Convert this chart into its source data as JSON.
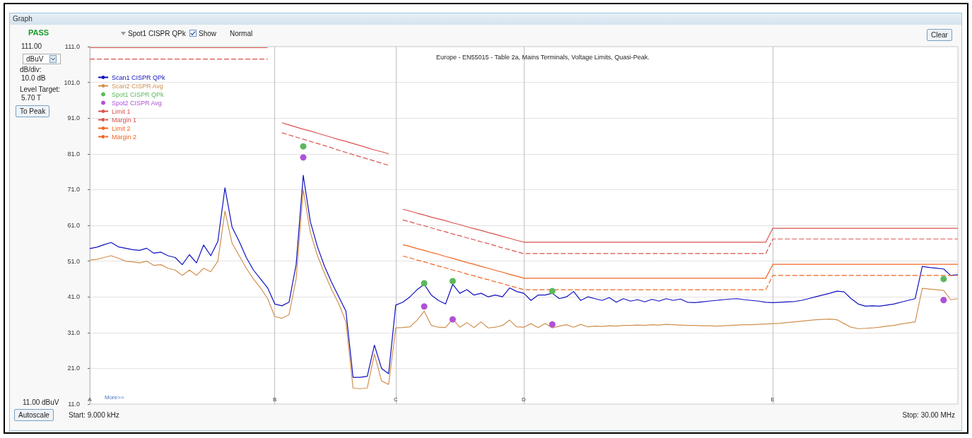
{
  "chart_data": {
    "type": "line",
    "title": "Europe - EN55015 - Table 2a, Mains Terminals, Voltage Limits, Quasi-Peak.",
    "categories": [
      "A",
      null,
      null,
      null,
      null,
      null,
      null,
      null,
      null,
      null,
      null,
      null,
      null,
      null,
      null,
      null,
      null,
      null,
      null,
      null,
      null,
      null,
      null,
      null,
      null,
      null,
      "B",
      null,
      null,
      null,
      null,
      null,
      null,
      null,
      null,
      null,
      null,
      null,
      null,
      null,
      null,
      null,
      null,
      "C",
      null,
      null,
      null,
      null,
      null,
      null,
      null,
      null,
      null,
      null,
      null,
      null,
      null,
      null,
      null,
      null,
      null,
      "D",
      null,
      null,
      null,
      null,
      null,
      null,
      null,
      null,
      null,
      null,
      null,
      null,
      null,
      null,
      null,
      null,
      null,
      null,
      null,
      null,
      null,
      null,
      null,
      null,
      null,
      null,
      null,
      null,
      null,
      null,
      null,
      null,
      null,
      null,
      "E",
      null,
      null,
      null,
      null,
      null,
      null,
      null,
      null,
      null,
      null,
      null,
      null,
      null,
      null,
      null,
      null,
      null,
      null,
      null,
      null,
      null,
      null,
      null,
      null,
      null,
      null
    ],
    "series": [
      {
        "name": "Scan1 CISPR QPk",
        "color": "#1010c0",
        "values": [
          54.5,
          54.9,
          55.6,
          56.2,
          55.0,
          54.6,
          54.2,
          54.0,
          54.6,
          53.2,
          53.5,
          52.5,
          52.0,
          50.0,
          52.8,
          50.5,
          55.5,
          52.5,
          56.5,
          71.5,
          60.5,
          56.5,
          52.0,
          48.5,
          46.0,
          43.5,
          39.0,
          38.5,
          39.5,
          50.0,
          75.0,
          62.0,
          55.0,
          49.5,
          45.0,
          41.0,
          37.0,
          18.5,
          18.5,
          18.8,
          27.5,
          21.0,
          19.5,
          38.7,
          39.5,
          41.0,
          43.0,
          44.5,
          41.5,
          40.0,
          39.0,
          44.5,
          42.0,
          43.0,
          41.5,
          42.0,
          41.0,
          41.5,
          41.0,
          43.5,
          42.5,
          42.0,
          40.0,
          41.5,
          41.5,
          42.0,
          40.5,
          41.0,
          42.5,
          40.0,
          41.0,
          40.5,
          40.0,
          40.8,
          39.5,
          40.5,
          39.8,
          40.2,
          39.6,
          40.3,
          39.8,
          40.5,
          40.0,
          40.4,
          39.5,
          39.4,
          39.6,
          39.8,
          40.0,
          40.2,
          40.4,
          40.5,
          40.2,
          40.0,
          39.8,
          39.5,
          39.4,
          39.5,
          39.6,
          39.7,
          40.0,
          40.5,
          41.0,
          41.5,
          42.0,
          42.6,
          42.4,
          40.5,
          39.0,
          38.4,
          38.5,
          38.4,
          38.7,
          39.0,
          39.5,
          40.0,
          40.5,
          49.5,
          49.2,
          49.0,
          48.8,
          47.0,
          47.2
        ]
      },
      {
        "name": "Scan2 CISPR Avg",
        "color": "#d09050",
        "values": [
          51.3,
          51.5,
          52.0,
          52.5,
          51.8,
          51.0,
          50.8,
          50.5,
          51.0,
          49.8,
          50.0,
          49.0,
          48.5,
          47.0,
          48.5,
          47.0,
          49.0,
          48.0,
          51.0,
          65.0,
          56.0,
          52.5,
          49.0,
          46.0,
          43.5,
          40.5,
          35.5,
          35.0,
          36.0,
          46.0,
          71.0,
          59.0,
          52.5,
          47.5,
          43.0,
          39.0,
          34.0,
          15.5,
          15.3,
          15.5,
          25.0,
          17.5,
          16.5,
          32.3,
          32.4,
          32.6,
          34.5,
          37.0,
          33.0,
          32.5,
          32.4,
          34.8,
          32.5,
          33.8,
          32.4,
          34.0,
          32.3,
          32.5,
          33.0,
          34.5,
          32.6,
          32.5,
          33.5,
          32.4,
          33.6,
          32.3,
          32.8,
          33.2,
          32.5,
          33.3,
          32.6,
          32.8,
          32.7,
          32.9,
          32.8,
          33.0,
          33.0,
          33.1,
          33.0,
          33.2,
          33.1,
          33.3,
          33.2,
          33.1,
          33.0,
          33.0,
          32.9,
          32.9,
          32.8,
          32.9,
          33.0,
          33.1,
          33.2,
          33.2,
          33.3,
          33.4,
          33.5,
          33.6,
          33.8,
          34.0,
          34.2,
          34.4,
          34.6,
          34.7,
          34.8,
          34.6,
          33.5,
          32.5,
          32.1,
          32.2,
          32.3,
          32.5,
          32.8,
          33.0,
          33.4,
          33.7,
          34.0,
          43.4,
          43.2,
          43.0,
          42.8,
          40.2,
          40.5
        ]
      },
      {
        "name": "Spot1 CISPR QPk",
        "type": "scatter",
        "marker": "circle",
        "color": "#5cb85c",
        "values": [
          null,
          null,
          null,
          null,
          null,
          null,
          null,
          null,
          null,
          null,
          null,
          null,
          null,
          null,
          null,
          null,
          null,
          null,
          null,
          null,
          null,
          null,
          null,
          null,
          null,
          null,
          null,
          null,
          null,
          null,
          83.1,
          null,
          null,
          null,
          null,
          null,
          null,
          null,
          null,
          null,
          null,
          null,
          null,
          null,
          null,
          null,
          null,
          44.8,
          null,
          null,
          null,
          45.4,
          null,
          null,
          null,
          null,
          null,
          null,
          null,
          null,
          null,
          null,
          null,
          null,
          null,
          42.6,
          null,
          null,
          null,
          null,
          null,
          null,
          null,
          null,
          null,
          null,
          null,
          null,
          null,
          null,
          null,
          null,
          null,
          null,
          null,
          null,
          null,
          null,
          null,
          null,
          null,
          null,
          null,
          null,
          null,
          null,
          null,
          null,
          null,
          null,
          null,
          null,
          null,
          null,
          null,
          null,
          null,
          null,
          null,
          null,
          null,
          null,
          null,
          null,
          null,
          null,
          null,
          null,
          null,
          null,
          46.0,
          null,
          null
        ]
      },
      {
        "name": "Spot2 CISPR Avg",
        "type": "scatter",
        "marker": "circle",
        "color": "#b050d8",
        "values": [
          null,
          null,
          null,
          null,
          null,
          null,
          null,
          null,
          null,
          null,
          null,
          null,
          null,
          null,
          null,
          null,
          null,
          null,
          null,
          null,
          null,
          null,
          null,
          null,
          null,
          null,
          null,
          null,
          null,
          null,
          80.0,
          null,
          null,
          null,
          null,
          null,
          null,
          null,
          null,
          null,
          null,
          null,
          null,
          null,
          null,
          null,
          null,
          38.3,
          null,
          null,
          null,
          34.7,
          null,
          null,
          null,
          null,
          null,
          null,
          null,
          null,
          null,
          null,
          null,
          null,
          null,
          33.3,
          null,
          null,
          null,
          null,
          null,
          null,
          null,
          null,
          null,
          null,
          null,
          null,
          null,
          null,
          null,
          null,
          null,
          null,
          null,
          null,
          null,
          null,
          null,
          null,
          null,
          null,
          null,
          null,
          null,
          null,
          null,
          null,
          null,
          null,
          null,
          null,
          null,
          null,
          null,
          null,
          null,
          null,
          null,
          null,
          null,
          null,
          null,
          null,
          null,
          null,
          null,
          null,
          null,
          null,
          40.1,
          null,
          null
        ]
      },
      {
        "name": "Limit 1",
        "color": "#d9534f",
        "line_style": "solid",
        "values": [
          110.7,
          110.7,
          110.7,
          110.7,
          110.7,
          110.7,
          110.7,
          110.7,
          110.7,
          110.7,
          110.7,
          110.7,
          110.7,
          110.7,
          110.7,
          110.7,
          110.7,
          110.7,
          110.7,
          110.7,
          110.7,
          110.7,
          110.7,
          110.7,
          110.7,
          110.7,
          null,
          89.7,
          89.1,
          88.5,
          87.9,
          87.4,
          86.8,
          86.2,
          85.6,
          85.0,
          84.5,
          83.9,
          83.3,
          82.7,
          82.1,
          81.6,
          81.0,
          null,
          65.5,
          65.0,
          64.4,
          63.9,
          63.3,
          62.8,
          62.3,
          61.7,
          61.2,
          60.6,
          60.1,
          59.6,
          59.0,
          58.5,
          57.9,
          57.4,
          56.8,
          56.3,
          56.3,
          56.3,
          56.3,
          56.3,
          56.3,
          56.3,
          56.3,
          56.3,
          56.3,
          56.3,
          56.3,
          56.3,
          56.3,
          56.3,
          56.3,
          56.3,
          56.3,
          56.3,
          56.3,
          56.3,
          56.3,
          56.3,
          56.3,
          56.3,
          56.3,
          56.3,
          56.3,
          56.3,
          56.3,
          56.3,
          56.3,
          56.3,
          56.3,
          56.3,
          60.2,
          60.2,
          60.2,
          60.2,
          60.2,
          60.2,
          60.2,
          60.2,
          60.2,
          60.2,
          60.2,
          60.2,
          60.2,
          60.2,
          60.2,
          60.2,
          60.2,
          60.2,
          60.2,
          60.2,
          60.2,
          60.2,
          60.2,
          60.2,
          60.2,
          60.2,
          60.2
        ]
      },
      {
        "name": "Margin 1",
        "color": "#d9534f",
        "line_style": "dashed",
        "values": [
          107.5,
          107.5,
          107.5,
          107.5,
          107.5,
          107.5,
          107.5,
          107.5,
          107.5,
          107.5,
          107.5,
          107.5,
          107.5,
          107.5,
          107.5,
          107.5,
          107.5,
          107.5,
          107.5,
          107.5,
          107.5,
          107.5,
          107.5,
          107.5,
          107.5,
          107.5,
          null,
          86.9,
          86.3,
          85.7,
          85.1,
          84.5,
          83.9,
          83.3,
          82.7,
          82.0,
          81.4,
          80.8,
          80.2,
          79.6,
          79.0,
          78.4,
          77.8,
          null,
          62.5,
          62.0,
          61.4,
          60.9,
          60.3,
          59.7,
          59.2,
          58.6,
          58.1,
          57.5,
          57.0,
          56.4,
          55.9,
          55.3,
          54.7,
          54.2,
          53.6,
          53.1,
          53.1,
          53.1,
          53.1,
          53.1,
          53.1,
          53.1,
          53.1,
          53.1,
          53.1,
          53.1,
          53.1,
          53.1,
          53.1,
          53.1,
          53.1,
          53.1,
          53.1,
          53.1,
          53.1,
          53.1,
          53.1,
          53.1,
          53.1,
          53.1,
          53.1,
          53.1,
          53.1,
          53.1,
          53.1,
          53.1,
          53.1,
          53.1,
          53.1,
          53.1,
          57.2,
          57.2,
          57.2,
          57.2,
          57.2,
          57.2,
          57.2,
          57.2,
          57.2,
          57.2,
          57.2,
          57.2,
          57.2,
          57.2,
          57.2,
          57.2,
          57.2,
          57.2,
          57.2,
          57.2,
          57.2,
          57.2,
          57.2,
          57.2,
          57.2,
          57.2,
          57.2
        ]
      },
      {
        "name": "Limit 2",
        "color": "#f26522",
        "line_style": "solid",
        "values": [
          null,
          null,
          null,
          null,
          null,
          null,
          null,
          null,
          null,
          null,
          null,
          null,
          null,
          null,
          null,
          null,
          null,
          null,
          null,
          null,
          null,
          null,
          null,
          null,
          null,
          null,
          null,
          null,
          null,
          null,
          null,
          null,
          null,
          null,
          null,
          null,
          null,
          null,
          null,
          null,
          null,
          null,
          null,
          null,
          55.6,
          55.1,
          54.5,
          54.0,
          53.4,
          52.9,
          52.3,
          51.8,
          51.2,
          50.6,
          50.1,
          49.5,
          49.0,
          48.4,
          47.9,
          47.3,
          46.8,
          46.2,
          46.2,
          46.2,
          46.2,
          46.2,
          46.2,
          46.2,
          46.2,
          46.2,
          46.2,
          46.2,
          46.2,
          46.2,
          46.2,
          46.2,
          46.2,
          46.2,
          46.2,
          46.2,
          46.2,
          46.2,
          46.2,
          46.2,
          46.2,
          46.2,
          46.2,
          46.2,
          46.2,
          46.2,
          46.2,
          46.2,
          46.2,
          46.2,
          46.2,
          46.2,
          50.1,
          50.1,
          50.1,
          50.1,
          50.1,
          50.1,
          50.1,
          50.1,
          50.1,
          50.1,
          50.1,
          50.1,
          50.1,
          50.1,
          50.1,
          50.1,
          50.1,
          50.1,
          50.1,
          50.1,
          50.1,
          50.1,
          50.1,
          50.1,
          50.1,
          50.1,
          50.1
        ]
      },
      {
        "name": "Margin 2",
        "color": "#f26522",
        "line_style": "dashed",
        "values": [
          null,
          null,
          null,
          null,
          null,
          null,
          null,
          null,
          null,
          null,
          null,
          null,
          null,
          null,
          null,
          null,
          null,
          null,
          null,
          null,
          null,
          null,
          null,
          null,
          null,
          null,
          null,
          null,
          null,
          null,
          null,
          null,
          null,
          null,
          null,
          null,
          null,
          null,
          null,
          null,
          null,
          null,
          null,
          null,
          52.4,
          51.9,
          51.3,
          50.8,
          50.2,
          49.6,
          49.1,
          48.5,
          48.0,
          47.4,
          46.9,
          46.3,
          45.8,
          45.2,
          44.7,
          44.1,
          43.6,
          43.0,
          43.0,
          43.0,
          43.0,
          43.0,
          43.0,
          43.0,
          43.0,
          43.0,
          43.0,
          43.0,
          43.0,
          43.0,
          43.0,
          43.0,
          43.0,
          43.0,
          43.0,
          43.0,
          43.0,
          43.0,
          43.0,
          43.0,
          43.0,
          43.0,
          43.0,
          43.0,
          43.0,
          43.0,
          43.0,
          43.0,
          43.0,
          43.0,
          43.0,
          43.0,
          47.0,
          47.0,
          47.0,
          47.0,
          47.0,
          47.0,
          47.0,
          47.0,
          47.0,
          47.0,
          47.0,
          47.0,
          47.0,
          47.0,
          47.0,
          47.0,
          47.0,
          47.0,
          47.0,
          47.0,
          47.0,
          47.0,
          47.0,
          47.0,
          47.0,
          47.0,
          47.0
        ]
      }
    ],
    "ylim": [
      11,
      111
    ],
    "yticks": [
      {
        "value": 11,
        "label": "11.0"
      },
      {
        "value": 21,
        "label": "21.0"
      },
      {
        "value": 31,
        "label": "31.0"
      },
      {
        "value": 41,
        "label": "41.0"
      },
      {
        "value": 51,
        "label": "51.0"
      },
      {
        "value": 61,
        "label": "61.0"
      },
      {
        "value": 71,
        "label": "71.0"
      },
      {
        "value": 81,
        "label": "81.0"
      },
      {
        "value": 91,
        "label": "91.0"
      },
      {
        "value": 101,
        "label": "101.0"
      },
      {
        "value": 111,
        "label": "111.0"
      }
    ],
    "grid": true,
    "legend": "top left",
    "marker": "none",
    "line_style": "solid",
    "annotations": [
      "Graph",
      "PASS",
      "111.00",
      "dBuV",
      "dB/div:",
      "10.0 dB",
      "Level Target:",
      "5.70 T",
      "To Peak",
      "Spot1 CISPR QPk",
      "Show",
      "Normal",
      "Clear",
      "11.00 dBuV",
      "Autoscale",
      "Start:  9.000 kHz",
      "Stop:  30.00 MHz",
      "More>>"
    ]
  }
}
